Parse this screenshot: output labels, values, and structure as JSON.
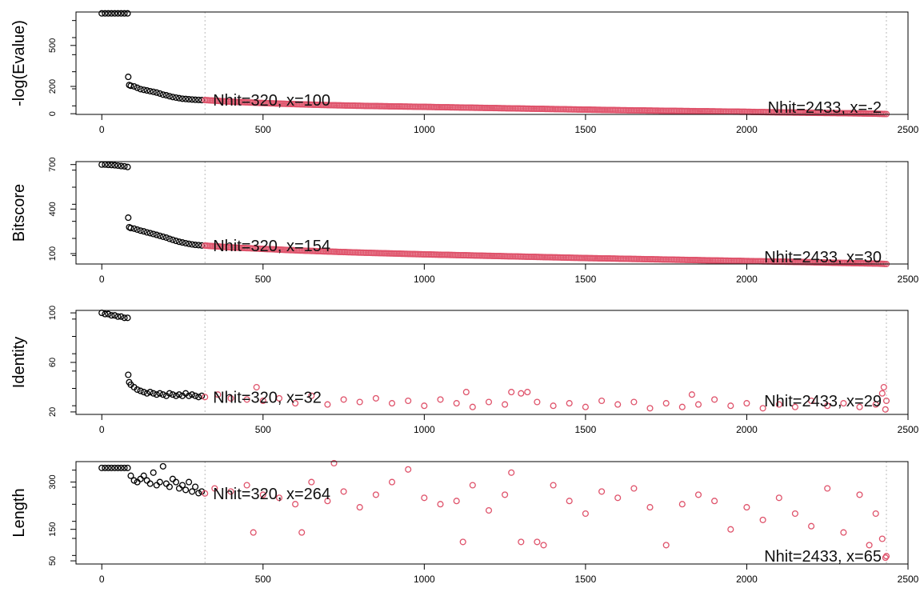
{
  "chart_data": [
    {
      "type": "scatter",
      "ylabel": "-log(Evalue)",
      "x_ticks": [
        "0",
        "500",
        "1000",
        "1500",
        "2000",
        "2500"
      ],
      "y_ticks": [
        0,
        200,
        500
      ],
      "y_tick_labels": [
        "0",
        "200",
        "500"
      ],
      "xlim": [
        -80,
        2500
      ],
      "ylim": [
        -5,
        745
      ],
      "vlines": [
        320,
        2433
      ],
      "cutoff_index": 320,
      "colors": {
        "top": "#000000",
        "rest": "#df536b"
      },
      "points": [
        [
          0,
          735
        ],
        [
          10,
          735
        ],
        [
          20,
          735
        ],
        [
          30,
          735
        ],
        [
          40,
          735
        ],
        [
          50,
          735
        ],
        [
          60,
          735
        ],
        [
          70,
          735
        ],
        [
          80,
          735
        ],
        [
          82,
          270
        ],
        [
          85,
          210
        ],
        [
          90,
          205
        ],
        [
          100,
          200
        ],
        [
          110,
          190
        ],
        [
          120,
          180
        ],
        [
          130,
          175
        ],
        [
          140,
          170
        ],
        [
          150,
          165
        ],
        [
          160,
          160
        ],
        [
          170,
          155
        ],
        [
          180,
          148
        ],
        [
          190,
          140
        ],
        [
          200,
          135
        ],
        [
          210,
          128
        ],
        [
          220,
          122
        ],
        [
          230,
          118
        ],
        [
          240,
          114
        ],
        [
          250,
          110
        ],
        [
          260,
          108
        ],
        [
          270,
          106
        ],
        [
          280,
          104
        ],
        [
          290,
          102
        ],
        [
          300,
          101
        ],
        [
          310,
          100
        ],
        [
          320,
          100
        ],
        [
          400,
          88
        ],
        [
          500,
          78
        ],
        [
          600,
          70
        ],
        [
          700,
          63
        ],
        [
          800,
          58
        ],
        [
          900,
          54
        ],
        [
          1000,
          50
        ],
        [
          1100,
          46
        ],
        [
          1200,
          42
        ],
        [
          1300,
          38
        ],
        [
          1400,
          34
        ],
        [
          1500,
          30
        ],
        [
          1600,
          26
        ],
        [
          1700,
          23
        ],
        [
          1800,
          20
        ],
        [
          1900,
          17
        ],
        [
          2000,
          14
        ],
        [
          2100,
          10
        ],
        [
          2200,
          7
        ],
        [
          2300,
          4
        ],
        [
          2400,
          0
        ],
        [
          2433,
          -2
        ]
      ],
      "annotations": [
        {
          "text": "Nhit=320, x=100",
          "x": 320,
          "y": 100,
          "anchor": "start"
        },
        {
          "text": "Nhit=2433, x=-2",
          "x": 2433,
          "y": -2,
          "anchor": "end"
        }
      ]
    },
    {
      "type": "scatter",
      "ylabel": "Bitscore",
      "x_ticks": [
        "0",
        "500",
        "1000",
        "1500",
        "2000",
        "2500"
      ],
      "y_ticks": [
        100,
        400,
        700
      ],
      "y_tick_labels": [
        "100",
        "400",
        "700"
      ],
      "xlim": [
        -80,
        2500
      ],
      "ylim": [
        30,
        720
      ],
      "vlines": [
        320,
        2433
      ],
      "cutoff_index": 320,
      "colors": {
        "top": "#000000",
        "rest": "#df536b"
      },
      "points": [
        [
          0,
          700
        ],
        [
          10,
          700
        ],
        [
          20,
          698
        ],
        [
          30,
          697
        ],
        [
          40,
          695
        ],
        [
          50,
          693
        ],
        [
          60,
          690
        ],
        [
          70,
          688
        ],
        [
          80,
          684
        ],
        [
          82,
          342
        ],
        [
          85,
          278
        ],
        [
          90,
          272
        ],
        [
          100,
          268
        ],
        [
          110,
          262
        ],
        [
          120,
          255
        ],
        [
          130,
          250
        ],
        [
          140,
          243
        ],
        [
          150,
          238
        ],
        [
          160,
          232
        ],
        [
          170,
          226
        ],
        [
          180,
          220
        ],
        [
          190,
          214
        ],
        [
          200,
          208
        ],
        [
          210,
          200
        ],
        [
          220,
          193
        ],
        [
          230,
          186
        ],
        [
          240,
          180
        ],
        [
          250,
          175
        ],
        [
          260,
          170
        ],
        [
          270,
          166
        ],
        [
          280,
          162
        ],
        [
          290,
          159
        ],
        [
          300,
          157
        ],
        [
          310,
          155
        ],
        [
          320,
          154
        ],
        [
          400,
          142
        ],
        [
          500,
          132
        ],
        [
          600,
          122
        ],
        [
          700,
          114
        ],
        [
          800,
          107
        ],
        [
          900,
          101
        ],
        [
          1000,
          95
        ],
        [
          1100,
          90
        ],
        [
          1200,
          85
        ],
        [
          1300,
          80
        ],
        [
          1400,
          75
        ],
        [
          1500,
          70
        ],
        [
          1600,
          66
        ],
        [
          1700,
          62
        ],
        [
          1800,
          58
        ],
        [
          1900,
          54
        ],
        [
          2000,
          50
        ],
        [
          2100,
          46
        ],
        [
          2200,
          42
        ],
        [
          2300,
          37
        ],
        [
          2400,
          33
        ],
        [
          2433,
          30
        ]
      ],
      "annotations": [
        {
          "text": "Nhit=320, x=154",
          "x": 320,
          "y": 154,
          "anchor": "start"
        },
        {
          "text": "Nhit=2433, x=30",
          "x": 2433,
          "y": 30,
          "anchor": "end"
        }
      ]
    },
    {
      "type": "scatter",
      "ylabel": "Identity",
      "x_ticks": [
        "0",
        "500",
        "1000",
        "1500",
        "2000",
        "2500"
      ],
      "y_ticks": [
        20,
        60,
        100
      ],
      "y_tick_labels": [
        "20",
        "60",
        "100"
      ],
      "xlim": [
        -80,
        2500
      ],
      "ylim": [
        18,
        102
      ],
      "vlines": [
        320,
        2433
      ],
      "cutoff_index": 320,
      "colors": {
        "top": "#000000",
        "rest": "#df536b"
      },
      "points": [
        [
          0,
          100
        ],
        [
          10,
          99
        ],
        [
          20,
          99
        ],
        [
          30,
          98
        ],
        [
          40,
          98
        ],
        [
          50,
          97
        ],
        [
          60,
          97
        ],
        [
          70,
          96
        ],
        [
          80,
          96
        ],
        [
          82,
          50
        ],
        [
          85,
          44
        ],
        [
          90,
          42
        ],
        [
          100,
          40
        ],
        [
          110,
          38
        ],
        [
          120,
          37
        ],
        [
          130,
          36
        ],
        [
          140,
          35
        ],
        [
          150,
          36
        ],
        [
          160,
          35
        ],
        [
          170,
          34
        ],
        [
          180,
          35
        ],
        [
          190,
          34
        ],
        [
          200,
          33
        ],
        [
          210,
          35
        ],
        [
          220,
          34
        ],
        [
          230,
          33
        ],
        [
          240,
          34
        ],
        [
          250,
          33
        ],
        [
          260,
          35
        ],
        [
          270,
          33
        ],
        [
          280,
          34
        ],
        [
          290,
          33
        ],
        [
          300,
          32
        ],
        [
          310,
          33
        ],
        [
          320,
          32
        ],
        [
          360,
          34
        ],
        [
          400,
          31
        ],
        [
          450,
          30
        ],
        [
          480,
          40
        ],
        [
          500,
          29
        ],
        [
          550,
          31
        ],
        [
          600,
          27
        ],
        [
          650,
          33
        ],
        [
          700,
          26
        ],
        [
          750,
          30
        ],
        [
          800,
          28
        ],
        [
          850,
          31
        ],
        [
          900,
          27
        ],
        [
          950,
          29
        ],
        [
          1000,
          25
        ],
        [
          1050,
          30
        ],
        [
          1100,
          27
        ],
        [
          1130,
          36
        ],
        [
          1150,
          24
        ],
        [
          1200,
          28
        ],
        [
          1250,
          26
        ],
        [
          1270,
          36
        ],
        [
          1300,
          35
        ],
        [
          1320,
          36
        ],
        [
          1350,
          28
        ],
        [
          1400,
          25
        ],
        [
          1450,
          27
        ],
        [
          1500,
          24
        ],
        [
          1550,
          29
        ],
        [
          1600,
          26
        ],
        [
          1650,
          28
        ],
        [
          1700,
          23
        ],
        [
          1750,
          27
        ],
        [
          1800,
          24
        ],
        [
          1830,
          34
        ],
        [
          1850,
          26
        ],
        [
          1900,
          30
        ],
        [
          1950,
          25
        ],
        [
          2000,
          27
        ],
        [
          2050,
          23
        ],
        [
          2100,
          26
        ],
        [
          2150,
          24
        ],
        [
          2200,
          29
        ],
        [
          2250,
          25
        ],
        [
          2300,
          27
        ],
        [
          2350,
          24
        ],
        [
          2400,
          26
        ],
        [
          2420,
          35
        ],
        [
          2425,
          40
        ],
        [
          2430,
          22
        ],
        [
          2433,
          29
        ]
      ],
      "annotations": [
        {
          "text": "Nhit=320, x=32",
          "x": 320,
          "y": 32,
          "anchor": "start"
        },
        {
          "text": "Nhit=2433, x=29",
          "x": 2433,
          "y": 29,
          "anchor": "end"
        }
      ]
    },
    {
      "type": "scatter",
      "ylabel": "Length",
      "x_ticks": [
        "0",
        "500",
        "1000",
        "1500",
        "2000",
        "2500"
      ],
      "y_ticks": [
        50,
        150,
        300
      ],
      "y_tick_labels": [
        "50",
        "150",
        "300"
      ],
      "xlim": [
        -80,
        2500
      ],
      "ylim": [
        40,
        365
      ],
      "vlines": [
        320,
        2433
      ],
      "cutoff_index": 320,
      "colors": {
        "top": "#000000",
        "rest": "#df536b"
      },
      "points": [
        [
          0,
          345
        ],
        [
          10,
          345
        ],
        [
          20,
          345
        ],
        [
          30,
          345
        ],
        [
          40,
          345
        ],
        [
          50,
          345
        ],
        [
          60,
          345
        ],
        [
          70,
          345
        ],
        [
          80,
          345
        ],
        [
          90,
          320
        ],
        [
          100,
          305
        ],
        [
          110,
          300
        ],
        [
          120,
          310
        ],
        [
          130,
          320
        ],
        [
          140,
          305
        ],
        [
          150,
          295
        ],
        [
          160,
          330
        ],
        [
          170,
          290
        ],
        [
          180,
          300
        ],
        [
          190,
          350
        ],
        [
          200,
          295
        ],
        [
          210,
          285
        ],
        [
          220,
          310
        ],
        [
          230,
          300
        ],
        [
          240,
          280
        ],
        [
          250,
          290
        ],
        [
          260,
          275
        ],
        [
          270,
          300
        ],
        [
          280,
          270
        ],
        [
          290,
          285
        ],
        [
          300,
          265
        ],
        [
          310,
          270
        ],
        [
          320,
          264
        ],
        [
          350,
          280
        ],
        [
          400,
          270
        ],
        [
          450,
          290
        ],
        [
          470,
          140
        ],
        [
          500,
          260
        ],
        [
          550,
          250
        ],
        [
          600,
          230
        ],
        [
          620,
          140
        ],
        [
          650,
          300
        ],
        [
          700,
          240
        ],
        [
          720,
          360
        ],
        [
          750,
          270
        ],
        [
          800,
          220
        ],
        [
          850,
          260
        ],
        [
          900,
          300
        ],
        [
          950,
          340
        ],
        [
          1000,
          250
        ],
        [
          1050,
          230
        ],
        [
          1100,
          240
        ],
        [
          1120,
          110
        ],
        [
          1150,
          290
        ],
        [
          1200,
          210
        ],
        [
          1250,
          260
        ],
        [
          1270,
          330
        ],
        [
          1300,
          110
        ],
        [
          1350,
          110
        ],
        [
          1370,
          100
        ],
        [
          1400,
          290
        ],
        [
          1450,
          240
        ],
        [
          1500,
          200
        ],
        [
          1550,
          270
        ],
        [
          1600,
          250
        ],
        [
          1650,
          280
        ],
        [
          1700,
          220
        ],
        [
          1750,
          100
        ],
        [
          1800,
          230
        ],
        [
          1850,
          260
        ],
        [
          1900,
          240
        ],
        [
          1950,
          150
        ],
        [
          2000,
          220
        ],
        [
          2050,
          180
        ],
        [
          2100,
          250
        ],
        [
          2150,
          200
        ],
        [
          2200,
          160
        ],
        [
          2250,
          280
        ],
        [
          2300,
          140
        ],
        [
          2350,
          260
        ],
        [
          2380,
          100
        ],
        [
          2400,
          200
        ],
        [
          2420,
          120
        ],
        [
          2430,
          60
        ],
        [
          2433,
          65
        ]
      ],
      "annotations": [
        {
          "text": "Nhit=320, x=264",
          "x": 320,
          "y": 264,
          "anchor": "start"
        },
        {
          "text": "Nhit=2433, x=65",
          "x": 2433,
          "y": 65,
          "anchor": "end"
        }
      ]
    }
  ]
}
